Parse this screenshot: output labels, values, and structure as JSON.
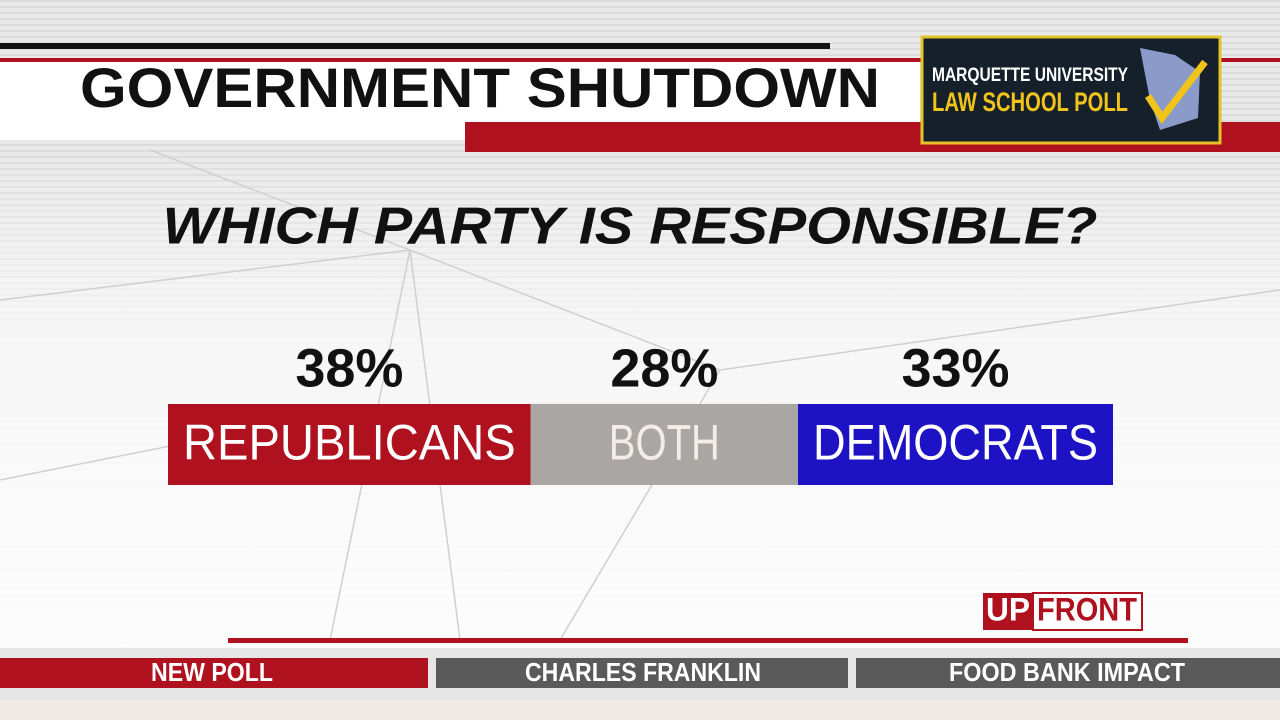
{
  "header": {
    "title": "GOVERNMENT SHUTDOWN"
  },
  "logo": {
    "line1": "MARQUETTE UNIVERSITY",
    "line2": "LAW SCHOOL POLL"
  },
  "chart_data": {
    "type": "bar",
    "title": "WHICH PARTY IS RESPONSIBLE?",
    "categories": [
      "REPUBLICANS",
      "BOTH",
      "DEMOCRATS"
    ],
    "values": [
      38,
      28,
      33
    ],
    "value_labels": [
      "38%",
      "28%",
      "33%"
    ],
    "colors": [
      "#b0111f",
      "#a9a6a4",
      "#1d12c4"
    ]
  },
  "brand": {
    "up": "UP",
    "front": "FRONT"
  },
  "ticker": [
    "NEW POLL",
    "CHARLES FRANKLIN",
    "FOOD BANK IMPACT"
  ]
}
